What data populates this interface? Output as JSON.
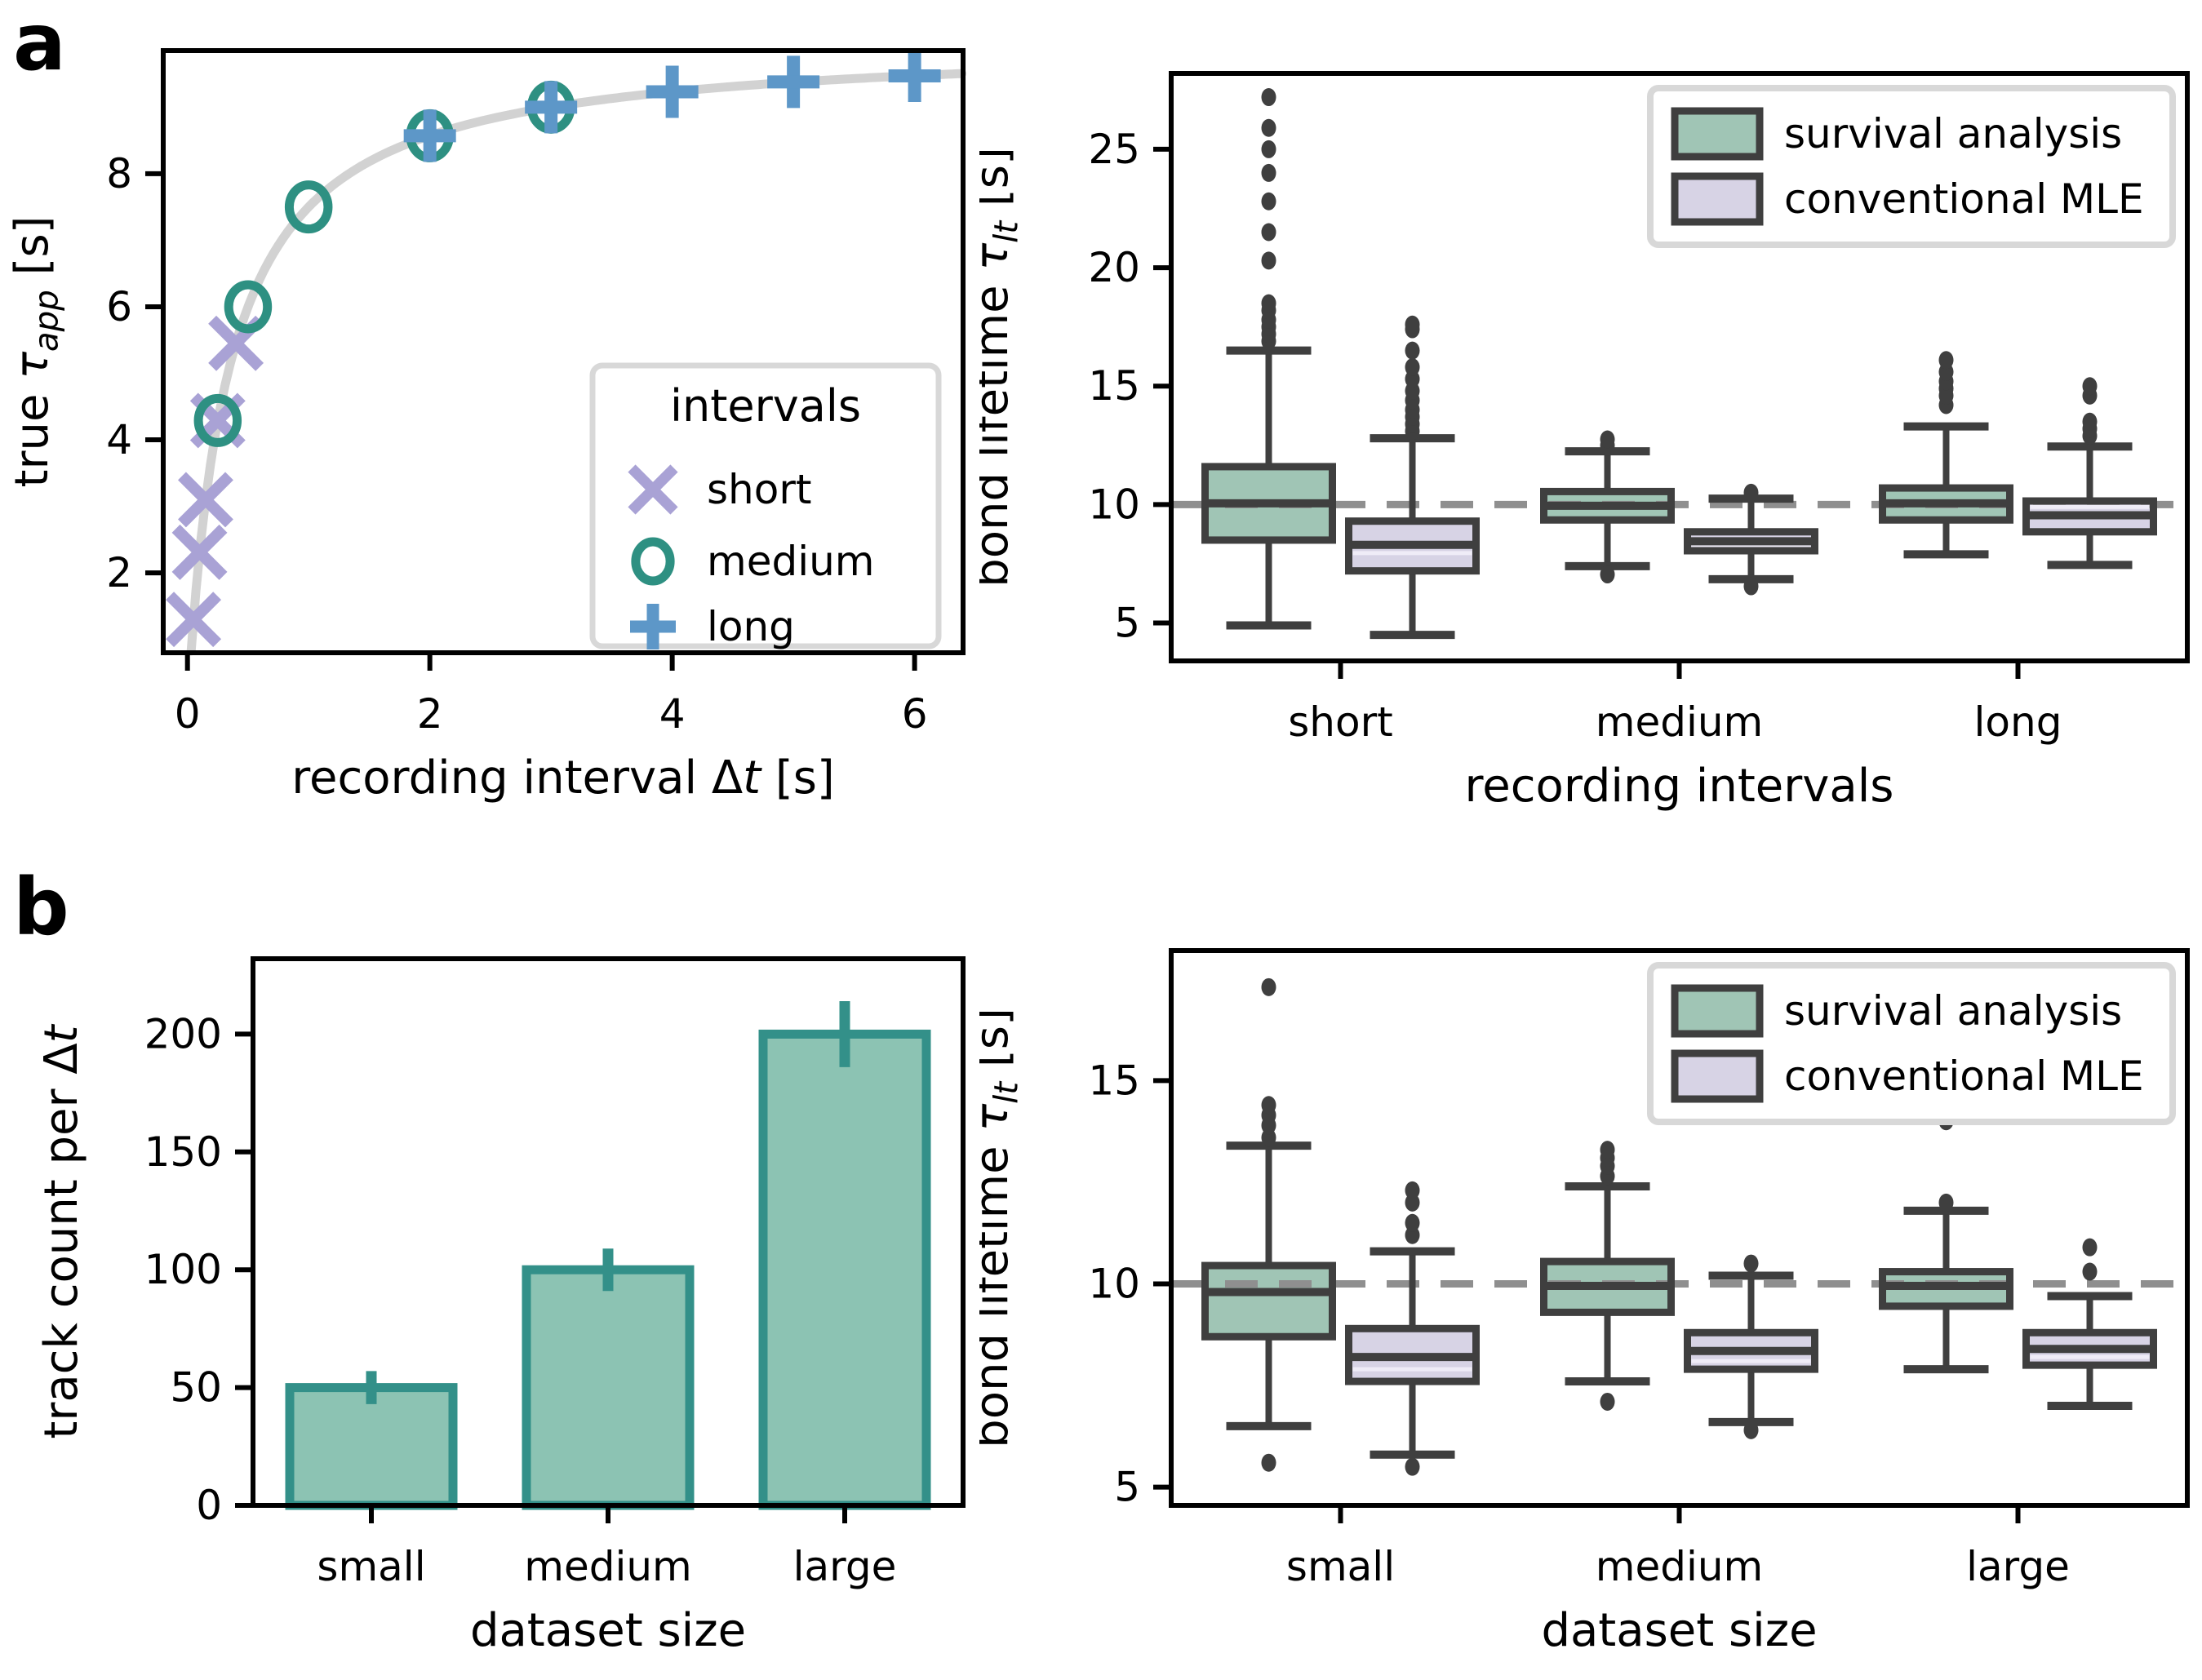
{
  "panels": {
    "a": {
      "label": "a"
    },
    "b": {
      "label": "b"
    }
  },
  "colors": {
    "frame": "#000000",
    "box_edge": "#3f3f3f",
    "outlier": "#3f3f3f",
    "ref_line": "#8f8f8f",
    "legend_border": "#d8d8d8",
    "survival_fill": "#a0c5b5",
    "mle_fill": "#d7d3e5",
    "bar_fill": "#8cc3b3",
    "bar_edge": "#339089",
    "curve": "#d2d2d2",
    "marker_short": "#a9a2d5",
    "marker_medium": "#2e9082",
    "marker_long": "#5d97c8"
  },
  "chart_data": [
    {
      "id": "a-scatter",
      "type": "scatter",
      "xlabel_segs": [
        {
          "t": "recording interval Δ"
        },
        {
          "t": "t",
          "i": true
        },
        {
          "t": " [s]"
        }
      ],
      "ylabel_segs": [
        {
          "t": "true "
        },
        {
          "t": "τ",
          "i": true
        },
        {
          "t": "app",
          "i": true,
          "sub": true
        },
        {
          "t": " [s]"
        }
      ],
      "xlim": [
        -0.2,
        6.4
      ],
      "ylim": [
        0.8,
        9.85
      ],
      "xticks": [
        {
          "v": 0,
          "l": "0"
        },
        {
          "v": 2,
          "l": "2"
        },
        {
          "v": 4,
          "l": "4"
        },
        {
          "v": 6,
          "l": "6"
        }
      ],
      "yticks": [
        {
          "v": 2,
          "l": "2"
        },
        {
          "v": 4,
          "l": "4"
        },
        {
          "v": 6,
          "l": "6"
        },
        {
          "v": 8,
          "l": "8"
        }
      ],
      "curve": {
        "tau": 10,
        "k": 0.3333,
        "x_start": 0.03,
        "x_end": 6.4,
        "color": "#d2d2d2"
      },
      "series": [
        {
          "name": "short",
          "marker": "x",
          "color": "#a9a2d5",
          "points": [
            [
              0.05,
              1.3
            ],
            [
              0.1,
              2.31
            ],
            [
              0.15,
              3.1
            ],
            [
              0.25,
              4.29
            ],
            [
              0.4,
              5.45
            ]
          ]
        },
        {
          "name": "medium",
          "marker": "circle",
          "color": "#2e9082",
          "points": [
            [
              0.25,
              4.29
            ],
            [
              0.5,
              6.0
            ],
            [
              1.0,
              7.5
            ],
            [
              2.0,
              8.57
            ],
            [
              3.0,
              9.0
            ]
          ]
        },
        {
          "name": "long",
          "marker": "plus",
          "color": "#5d97c8",
          "points": [
            [
              2.0,
              8.57
            ],
            [
              3.0,
              9.0
            ],
            [
              4.0,
              9.23
            ],
            [
              5.0,
              9.38
            ],
            [
              6.0,
              9.47
            ]
          ]
        }
      ],
      "legend": {
        "title": "intervals",
        "entries": [
          "short",
          "medium",
          "long"
        ]
      }
    },
    {
      "id": "a-box",
      "type": "box",
      "categories": [
        "short",
        "medium",
        "long"
      ],
      "xlabel_segs": [
        {
          "t": "recording intervals"
        }
      ],
      "ylabel_segs": [
        {
          "t": "bond lifetime "
        },
        {
          "t": "τ",
          "i": true
        },
        {
          "t": "lt",
          "i": true,
          "sub": true
        },
        {
          "t": " [s]"
        }
      ],
      "ylim": [
        3.4,
        28.2
      ],
      "yticks": [
        {
          "v": 5,
          "l": "5"
        },
        {
          "v": 10,
          "l": "10"
        },
        {
          "v": 15,
          "l": "15"
        },
        {
          "v": 20,
          "l": "20"
        },
        {
          "v": 25,
          "l": "25"
        }
      ],
      "ref_line": 10,
      "series": [
        {
          "name": "survival analysis",
          "fill": "#a0c5b5",
          "boxes": [
            {
              "w_lo": 4.9,
              "q1": 8.5,
              "med": 10.05,
              "q3": 11.6,
              "w_hi": 16.5,
              "outliers": [
                16.9,
                17.2,
                17.5,
                17.8,
                18.2,
                18.5,
                20.3,
                21.5,
                22.8,
                24.0,
                25.0,
                25.9,
                27.2
              ]
            },
            {
              "w_lo": 7.4,
              "q1": 9.35,
              "med": 9.95,
              "q3": 10.55,
              "w_hi": 12.25,
              "outliers": [
                12.5,
                12.75,
                7.05
              ]
            },
            {
              "w_lo": 7.9,
              "q1": 9.35,
              "med": 10.05,
              "q3": 10.7,
              "w_hi": 13.3,
              "outliers": [
                14.2,
                14.6,
                14.9,
                15.2,
                15.6,
                16.1
              ]
            }
          ]
        },
        {
          "name": "conventional MLE",
          "fill": "#d7d3e5",
          "mean_color": "#efecf7",
          "boxes": [
            {
              "w_lo": 4.5,
              "q1": 7.2,
              "med": 8.3,
              "q3": 9.3,
              "w_hi": 12.8,
              "mean": 7.95,
              "outliers": [
                13.1,
                13.4,
                13.7,
                14.0,
                14.4,
                14.8,
                15.3,
                15.8,
                16.5,
                17.4,
                17.6
              ]
            },
            {
              "w_lo": 6.85,
              "q1": 8.05,
              "med": 8.45,
              "q3": 8.85,
              "w_hi": 10.25,
              "mean": 8.3,
              "outliers": [
                10.5,
                6.55
              ]
            },
            {
              "w_lo": 7.45,
              "q1": 8.85,
              "med": 9.55,
              "q3": 10.15,
              "w_hi": 12.45,
              "mean": 9.9,
              "outliers": [
                12.9,
                13.2,
                13.5,
                14.6,
                15.0
              ]
            }
          ]
        }
      ],
      "legend": {
        "entries": [
          "survival analysis",
          "conventional MLE"
        ]
      },
      "xlabel_title": "recording intervals"
    },
    {
      "id": "b-bar",
      "type": "bar",
      "categories": [
        "small",
        "medium",
        "large"
      ],
      "values": [
        50,
        100,
        200
      ],
      "errors": [
        7,
        9,
        14
      ],
      "xlabel_segs": [
        {
          "t": "dataset size"
        }
      ],
      "ylabel_segs": [
        {
          "t": "track count per Δ"
        },
        {
          "t": "t",
          "i": true
        }
      ],
      "ylim": [
        0,
        232
      ],
      "yticks": [
        {
          "v": 0,
          "l": "0"
        },
        {
          "v": 50,
          "l": "50"
        },
        {
          "v": 100,
          "l": "100"
        },
        {
          "v": 150,
          "l": "150"
        },
        {
          "v": 200,
          "l": "200"
        }
      ],
      "bar_fill": "#8cc3b3",
      "bar_edge": "#339089"
    },
    {
      "id": "b-box",
      "type": "box",
      "categories": [
        "small",
        "medium",
        "large"
      ],
      "xlabel_segs": [
        {
          "t": "dataset size"
        }
      ],
      "ylabel_segs": [
        {
          "t": "bond lifetime "
        },
        {
          "t": "τ",
          "i": true
        },
        {
          "t": "lt",
          "i": true,
          "sub": true
        },
        {
          "t": " [s]"
        }
      ],
      "ylim": [
        4.55,
        18.2
      ],
      "yticks": [
        {
          "v": 5,
          "l": "5"
        },
        {
          "v": 10,
          "l": "10"
        },
        {
          "v": 15,
          "l": "15"
        }
      ],
      "ref_line": 10,
      "series": [
        {
          "name": "survival analysis",
          "fill": "#a0c5b5",
          "boxes": [
            {
              "w_lo": 6.5,
              "q1": 8.7,
              "med": 9.8,
              "q3": 10.45,
              "w_hi": 13.4,
              "outliers": [
                5.6,
                13.6,
                13.9,
                14.15,
                14.4,
                17.3
              ]
            },
            {
              "w_lo": 7.6,
              "q1": 9.3,
              "med": 9.95,
              "q3": 10.55,
              "w_hi": 12.4,
              "outliers": [
                7.1,
                12.65,
                12.9,
                13.1,
                13.3
              ]
            },
            {
              "w_lo": 7.9,
              "q1": 9.45,
              "med": 9.95,
              "q3": 10.3,
              "w_hi": 11.8,
              "outliers": [
                12.0,
                14.0
              ]
            }
          ]
        },
        {
          "name": "conventional MLE",
          "fill": "#d7d3e5",
          "mean_color": "#efecf7",
          "boxes": [
            {
              "w_lo": 5.8,
              "q1": 7.6,
              "med": 8.2,
              "q3": 8.9,
              "w_hi": 10.8,
              "mean": 7.9,
              "outliers": [
                5.5,
                11.2,
                11.5,
                12.0,
                12.3
              ]
            },
            {
              "w_lo": 6.6,
              "q1": 7.9,
              "med": 8.35,
              "q3": 8.8,
              "w_hi": 10.2,
              "mean": 8.1,
              "outliers": [
                6.4,
                10.5
              ]
            },
            {
              "w_lo": 7.0,
              "q1": 8.0,
              "med": 8.4,
              "q3": 8.8,
              "w_hi": 9.7,
              "mean": 8.2,
              "outliers": [
                10.3,
                10.9
              ]
            }
          ]
        }
      ],
      "legend": {
        "entries": [
          "survival analysis",
          "conventional MLE"
        ]
      }
    }
  ]
}
